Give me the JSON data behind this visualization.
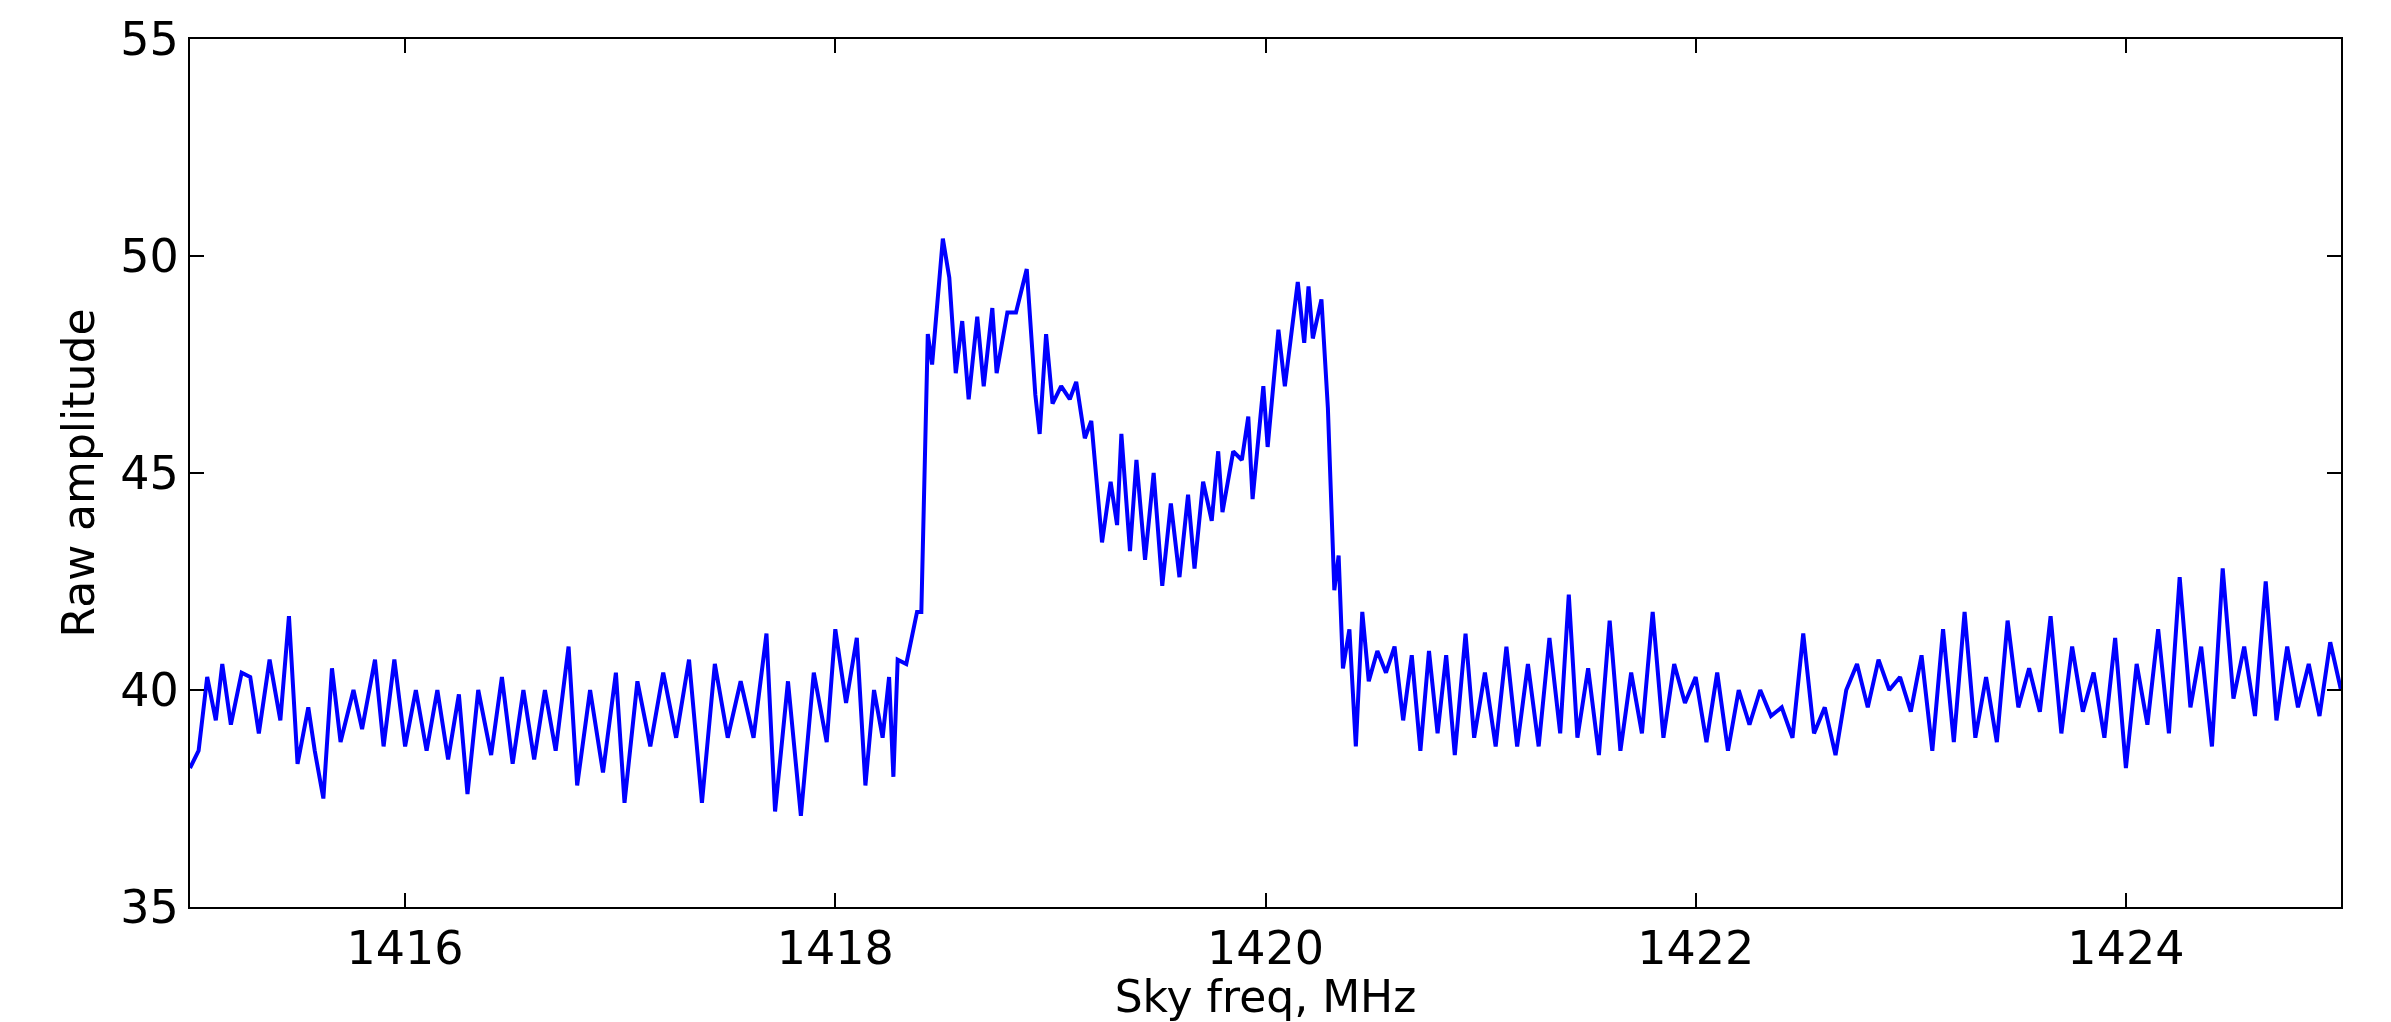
{
  "chart_data": {
    "type": "line",
    "xlabel": "Sky freq, MHz",
    "ylabel": "Raw amplitude",
    "xlim": [
      1415,
      1425
    ],
    "xticks": [
      1416,
      1418,
      1420,
      1422,
      1424
    ],
    "ylim": [
      35,
      55
    ],
    "yticks": [
      35,
      40,
      45,
      50,
      55
    ],
    "legend": false,
    "marker": "none",
    "line_style": "solid",
    "series": [
      {
        "color": "#0000ff",
        "x": [
          1415.0,
          1415.04,
          1415.08,
          1415.12,
          1415.15,
          1415.19,
          1415.24,
          1415.28,
          1415.32,
          1415.37,
          1415.42,
          1415.46,
          1415.5,
          1415.55,
          1415.58,
          1415.62,
          1415.66,
          1415.7,
          1415.76,
          1415.8,
          1415.86,
          1415.9,
          1415.95,
          1416.0,
          1416.05,
          1416.1,
          1416.15,
          1416.2,
          1416.25,
          1416.29,
          1416.34,
          1416.4,
          1416.45,
          1416.5,
          1416.55,
          1416.6,
          1416.65,
          1416.7,
          1416.76,
          1416.8,
          1416.86,
          1416.92,
          1416.98,
          1417.02,
          1417.08,
          1417.14,
          1417.2,
          1417.26,
          1417.32,
          1417.38,
          1417.44,
          1417.5,
          1417.56,
          1417.62,
          1417.68,
          1417.72,
          1417.78,
          1417.84,
          1417.9,
          1417.96,
          1418.0,
          1418.05,
          1418.1,
          1418.14,
          1418.18,
          1418.22,
          1418.25,
          1418.27,
          1418.29,
          1418.33,
          1418.38,
          1418.4,
          1418.43,
          1418.45,
          1418.5,
          1418.53,
          1418.56,
          1418.59,
          1418.62,
          1418.66,
          1418.69,
          1418.73,
          1418.75,
          1418.8,
          1418.84,
          1418.89,
          1418.93,
          1418.95,
          1418.98,
          1419.01,
          1419.05,
          1419.09,
          1419.12,
          1419.16,
          1419.19,
          1419.24,
          1419.28,
          1419.31,
          1419.33,
          1419.37,
          1419.4,
          1419.44,
          1419.48,
          1419.52,
          1419.56,
          1419.6,
          1419.64,
          1419.67,
          1419.71,
          1419.75,
          1419.78,
          1419.8,
          1419.85,
          1419.89,
          1419.92,
          1419.94,
          1419.99,
          1420.01,
          1420.06,
          1420.09,
          1420.15,
          1420.18,
          1420.2,
          1420.22,
          1420.26,
          1420.29,
          1420.32,
          1420.34,
          1420.36,
          1420.39,
          1420.42,
          1420.45,
          1420.48,
          1420.52,
          1420.56,
          1420.6,
          1420.64,
          1420.68,
          1420.72,
          1420.76,
          1420.8,
          1420.84,
          1420.88,
          1420.93,
          1420.97,
          1421.02,
          1421.07,
          1421.12,
          1421.17,
          1421.22,
          1421.27,
          1421.32,
          1421.37,
          1421.41,
          1421.45,
          1421.5,
          1421.55,
          1421.6,
          1421.65,
          1421.7,
          1421.75,
          1421.8,
          1421.85,
          1421.9,
          1421.95,
          1422.0,
          1422.05,
          1422.1,
          1422.15,
          1422.2,
          1422.25,
          1422.3,
          1422.35,
          1422.4,
          1422.45,
          1422.5,
          1422.55,
          1422.6,
          1422.65,
          1422.7,
          1422.75,
          1422.8,
          1422.85,
          1422.9,
          1422.95,
          1423.0,
          1423.05,
          1423.1,
          1423.15,
          1423.2,
          1423.25,
          1423.3,
          1423.35,
          1423.4,
          1423.45,
          1423.5,
          1423.55,
          1423.6,
          1423.65,
          1423.7,
          1423.75,
          1423.8,
          1423.85,
          1423.9,
          1423.95,
          1424.0,
          1424.05,
          1424.1,
          1424.15,
          1424.2,
          1424.25,
          1424.3,
          1424.35,
          1424.4,
          1424.45,
          1424.5,
          1424.55,
          1424.6,
          1424.65,
          1424.7,
          1424.75,
          1424.8,
          1424.85,
          1424.9,
          1424.95,
          1425.0
        ],
        "values": [
          38.2,
          38.6,
          40.3,
          39.3,
          40.6,
          39.2,
          40.4,
          40.3,
          39.0,
          40.7,
          39.3,
          41.7,
          38.3,
          39.6,
          38.6,
          37.5,
          40.5,
          38.8,
          40.0,
          39.1,
          40.7,
          38.7,
          40.7,
          38.7,
          40.0,
          38.6,
          40.0,
          38.4,
          39.9,
          37.6,
          40.0,
          38.5,
          40.3,
          38.3,
          40.0,
          38.4,
          40.0,
          38.6,
          41.0,
          37.8,
          40.0,
          38.1,
          40.4,
          37.4,
          40.2,
          38.7,
          40.4,
          38.9,
          40.7,
          37.4,
          40.6,
          38.9,
          40.2,
          38.9,
          41.3,
          37.2,
          40.2,
          37.1,
          40.4,
          38.8,
          41.4,
          39.7,
          41.2,
          37.8,
          40.0,
          38.9,
          40.3,
          38.0,
          40.7,
          40.6,
          41.8,
          41.8,
          48.2,
          47.5,
          50.4,
          49.5,
          47.3,
          48.5,
          46.7,
          48.6,
          47.0,
          48.8,
          47.3,
          48.7,
          48.7,
          49.7,
          46.8,
          45.9,
          48.2,
          46.6,
          47.0,
          46.7,
          47.1,
          45.8,
          46.2,
          43.4,
          44.8,
          43.8,
          45.9,
          43.2,
          45.3,
          43.0,
          45.0,
          42.4,
          44.3,
          42.6,
          44.5,
          42.8,
          44.8,
          43.9,
          45.5,
          44.1,
          45.5,
          45.3,
          46.3,
          44.4,
          47.0,
          45.6,
          48.3,
          47.0,
          49.4,
          48.0,
          49.3,
          48.1,
          49.0,
          46.5,
          42.3,
          43.1,
          40.5,
          41.4,
          38.7,
          41.8,
          40.2,
          40.9,
          40.4,
          41.0,
          39.3,
          40.8,
          38.6,
          40.9,
          39.0,
          40.8,
          38.5,
          41.3,
          38.9,
          40.4,
          38.7,
          41.0,
          38.7,
          40.6,
          38.7,
          41.2,
          39.0,
          42.2,
          38.9,
          40.5,
          38.5,
          41.6,
          38.6,
          40.4,
          39.0,
          41.8,
          38.9,
          40.6,
          39.7,
          40.3,
          38.8,
          40.4,
          38.6,
          40.0,
          39.2,
          40.0,
          39.4,
          39.6,
          38.9,
          41.3,
          39.0,
          39.6,
          38.5,
          40.0,
          40.6,
          39.6,
          40.7,
          40.0,
          40.3,
          39.5,
          40.8,
          38.6,
          41.4,
          38.8,
          41.8,
          38.9,
          40.3,
          38.8,
          41.6,
          39.6,
          40.5,
          39.5,
          41.7,
          39.0,
          41.0,
          39.5,
          40.4,
          38.9,
          41.2,
          38.2,
          40.6,
          39.2,
          41.4,
          39.0,
          42.6,
          39.6,
          41.0,
          38.7,
          42.8,
          39.8,
          41.0,
          39.4,
          42.5,
          39.3,
          41.0,
          39.6,
          40.6,
          39.4,
          41.1,
          40.0
        ]
      }
    ]
  }
}
